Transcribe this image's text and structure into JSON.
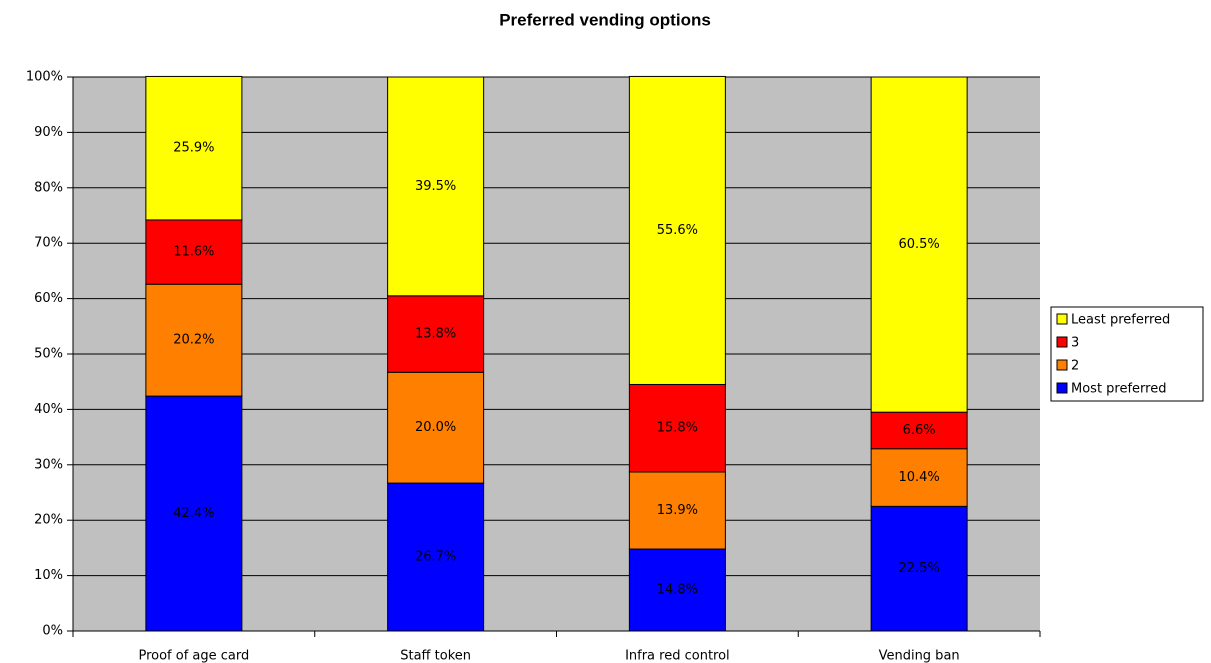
{
  "chart_data": {
    "type": "stacked_bar",
    "title": "Preferred vending options",
    "categories": [
      "Proof of age card",
      "Staff token",
      "Infra red control",
      "Vending ban"
    ],
    "series": [
      {
        "name": "Most preferred",
        "color": "#0000ff",
        "values": [
          42.4,
          26.7,
          14.8,
          22.5
        ],
        "value_labels": [
          "42.4%",
          "26.7%",
          "14.8%",
          "22.5%"
        ]
      },
      {
        "name": "2",
        "color": "#ff8000",
        "values": [
          20.2,
          20.0,
          13.9,
          10.4
        ],
        "value_labels": [
          "20.2%",
          "20.0%",
          "13.9%",
          "10.4%"
        ]
      },
      {
        "name": "3",
        "color": "#ff0000",
        "values": [
          11.6,
          13.8,
          15.8,
          6.6
        ],
        "value_labels": [
          "11.6%",
          "13.8%",
          "15.8%",
          "6.6%"
        ]
      },
      {
        "name": "Least preferred",
        "color": "#ffff00",
        "values": [
          25.9,
          39.5,
          55.6,
          60.5
        ],
        "value_labels": [
          "25.9%",
          "39.5%",
          "55.6%",
          "60.5%"
        ]
      }
    ],
    "ylim": [
      0,
      100
    ],
    "yticks": [
      {
        "value": 0,
        "label": "0%"
      },
      {
        "value": 10,
        "label": "10%"
      },
      {
        "value": 20,
        "label": "20%"
      },
      {
        "value": 30,
        "label": "30%"
      },
      {
        "value": 40,
        "label": "40%"
      },
      {
        "value": 50,
        "label": "50%"
      },
      {
        "value": 60,
        "label": "60%"
      },
      {
        "value": 70,
        "label": "70%"
      },
      {
        "value": 80,
        "label": "80%"
      },
      {
        "value": 90,
        "label": "90%"
      },
      {
        "value": 100,
        "label": "100%"
      }
    ],
    "grid": true,
    "legend": "right",
    "plot_background": "#c0c0c0"
  }
}
